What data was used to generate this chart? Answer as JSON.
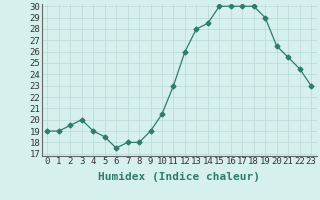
{
  "x": [
    0,
    1,
    2,
    3,
    4,
    5,
    6,
    7,
    8,
    9,
    10,
    11,
    12,
    13,
    14,
    15,
    16,
    17,
    18,
    19,
    20,
    21,
    22,
    23
  ],
  "y": [
    19,
    19,
    19.5,
    20,
    19,
    18.5,
    17.5,
    18,
    18,
    19,
    20.5,
    23,
    26,
    28,
    28.5,
    30,
    30,
    30,
    30,
    29,
    26.5,
    25.5,
    24.5,
    23
  ],
  "xlabel": "Humidex (Indice chaleur)",
  "ylim": [
    17,
    30
  ],
  "yticks": [
    17,
    18,
    19,
    20,
    21,
    22,
    23,
    24,
    25,
    26,
    27,
    28,
    29,
    30
  ],
  "xlim": [
    -0.5,
    23.5
  ],
  "xtick_labels": [
    "0",
    "1",
    "2",
    "3",
    "4",
    "5",
    "6",
    "7",
    "8",
    "9",
    "10",
    "11",
    "12",
    "13",
    "14",
    "15",
    "16",
    "17",
    "18",
    "19",
    "20",
    "21",
    "22",
    "23"
  ],
  "line_color": "#2E7D6B",
  "marker": "D",
  "marker_size": 2.5,
  "bg_color": "#D6F0EE",
  "grid_color": "#B8DAD6",
  "xlabel_fontsize": 8,
  "tick_fontsize": 6.5
}
